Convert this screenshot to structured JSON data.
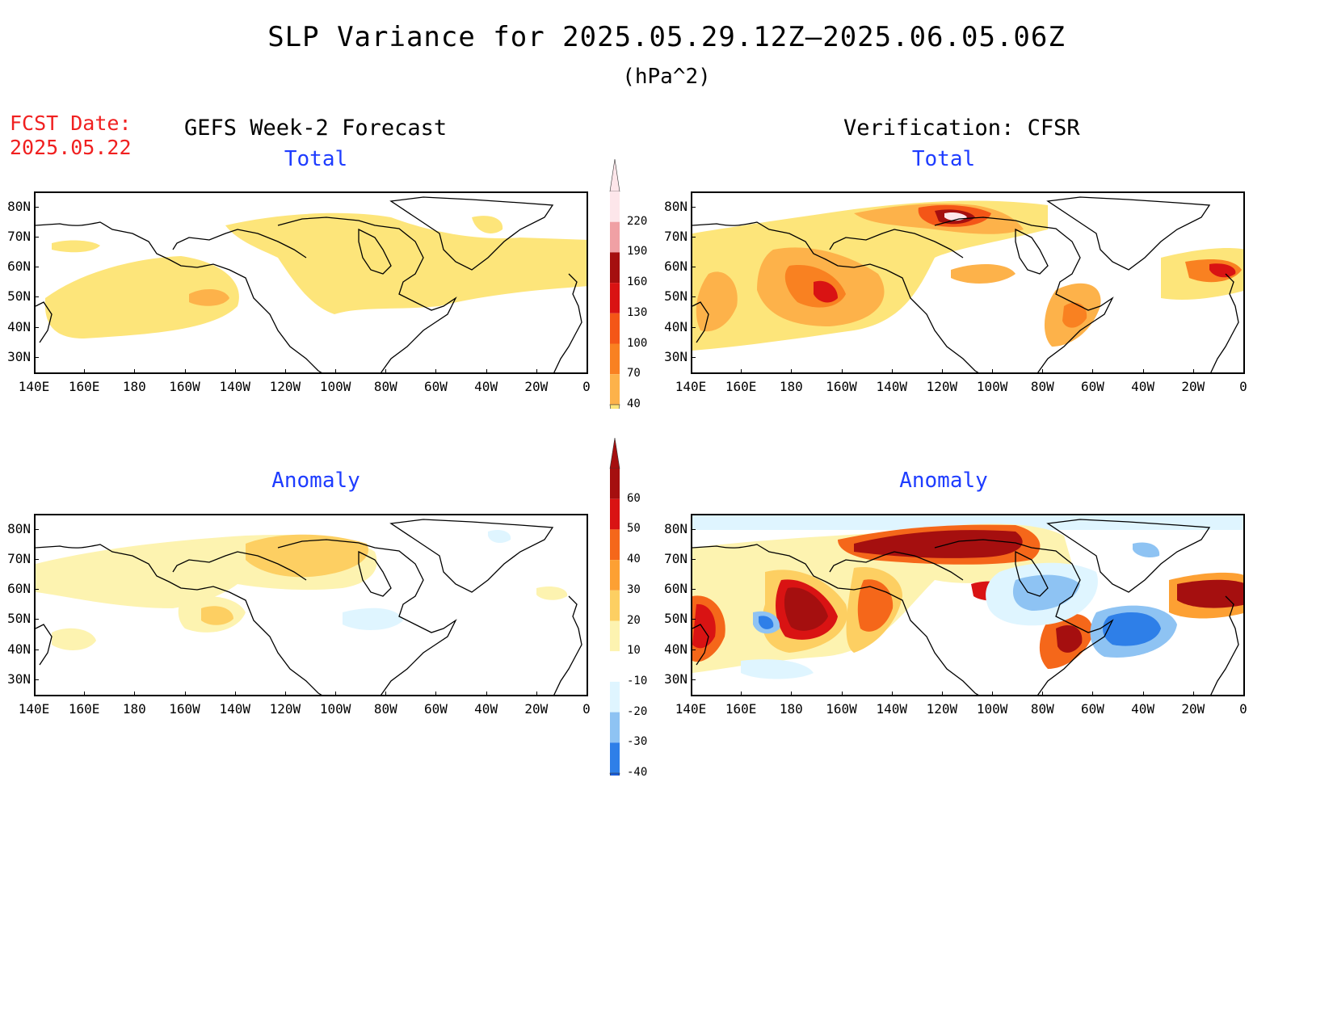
{
  "title": "SLP Variance for 2025.05.29.12Z—2025.06.05.06Z",
  "units": "(hPa^2)",
  "fcst_label": "FCST Date:",
  "fcst_date": "2025.05.22",
  "left_column_title": "GEFS Week-2 Forecast",
  "right_column_title": "Verification: CFSR",
  "panels": [
    {
      "id": "fc-total",
      "subtitle": "Total"
    },
    {
      "id": "vr-total",
      "subtitle": "Total"
    },
    {
      "id": "fc-anom",
      "subtitle": "Anomaly"
    },
    {
      "id": "vr-anom",
      "subtitle": "Anomaly"
    }
  ],
  "lat_labels": [
    "80N",
    "70N",
    "60N",
    "50N",
    "40N",
    "30N"
  ],
  "lon_labels": [
    "140E",
    "160E",
    "180",
    "160W",
    "140W",
    "120W",
    "100W",
    "80W",
    "60W",
    "40W",
    "20W",
    "0"
  ],
  "colorbar_total": {
    "levels": [
      "40",
      "70",
      "100",
      "130",
      "160",
      "190",
      "220"
    ],
    "colors": [
      "#fde57a",
      "#fdb24a",
      "#f98121",
      "#f45617",
      "#d91313",
      "#a50f0f",
      "#f0a0a4",
      "#fde6ea"
    ]
  },
  "colorbar_anomaly": {
    "levels": [
      "-40",
      "-30",
      "-20",
      "-10",
      "10",
      "20",
      "30",
      "40",
      "50",
      "60"
    ],
    "colors": [
      "#1a5cd8",
      "#2e7fe8",
      "#8ec3f3",
      "#dff5ff",
      "#ffffff",
      "#fdf3b0",
      "#fdcf62",
      "#fda033",
      "#f5671a",
      "#d91313",
      "#a50f0f"
    ]
  }
}
